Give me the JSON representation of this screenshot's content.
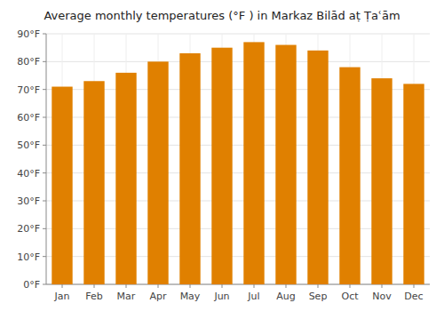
{
  "chart_data": {
    "type": "bar",
    "title": "Average monthly temperatures (°F ) in Markaz Bilād aṭ Ṭaʿām",
    "categories": [
      "Jan",
      "Feb",
      "Mar",
      "Apr",
      "May",
      "Jun",
      "Jul",
      "Aug",
      "Sep",
      "Oct",
      "Nov",
      "Dec"
    ],
    "values": [
      71,
      73,
      76,
      80,
      83,
      85,
      87,
      86,
      84,
      78,
      74,
      72
    ],
    "color": "#E08000",
    "ylim": [
      0,
      90
    ],
    "yticks": [
      {
        "value": 0,
        "label": "0°F"
      },
      {
        "value": 10,
        "label": "10°F"
      },
      {
        "value": 20,
        "label": "20°F"
      },
      {
        "value": 30,
        "label": "30°F"
      },
      {
        "value": 40,
        "label": "40°F"
      },
      {
        "value": 50,
        "label": "50°F"
      },
      {
        "value": 60,
        "label": "60°F"
      },
      {
        "value": 70,
        "label": "70°F"
      },
      {
        "value": 80,
        "label": "80°F"
      },
      {
        "value": 90,
        "label": "90°F"
      }
    ],
    "grid": true
  }
}
